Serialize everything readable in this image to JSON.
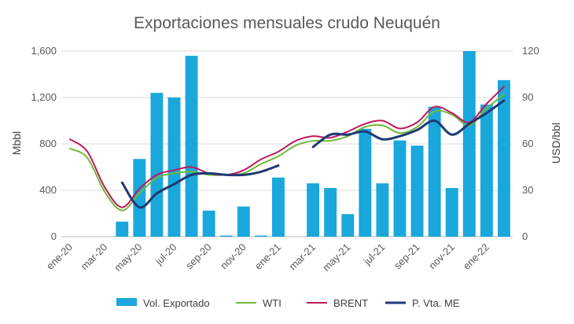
{
  "chart_data": {
    "type": "bar+line",
    "title": "Exportaciones mensuales crudo Neuquén",
    "ylabel_left": "Mbbl",
    "ylabel_right": "USD/bbl",
    "ylim_left": [
      0,
      1600
    ],
    "ylim_right": [
      0,
      120
    ],
    "yticks_left": [
      "0",
      "400",
      "800",
      "1,200",
      "1,600"
    ],
    "yticks_right": [
      "0",
      "30",
      "60",
      "90",
      "120"
    ],
    "grid": true,
    "legend_position": "bottom",
    "categories": [
      "ene-20",
      "feb-20",
      "mar-20",
      "abr-20",
      "may-20",
      "jun-20",
      "jul-20",
      "ago-20",
      "sep-20",
      "oct-20",
      "nov-20",
      "dic-20",
      "ene-21",
      "feb-21",
      "mar-21",
      "abr-21",
      "may-21",
      "jun-21",
      "jul-21",
      "ago-21",
      "sep-21",
      "oct-21",
      "nov-21",
      "dic-21",
      "ene-22",
      "feb-22"
    ],
    "xtick_labels": [
      "ene-20",
      "mar-20",
      "may-20",
      "jul-20",
      "sep-20",
      "nov-20",
      "ene-21",
      "mar-21",
      "may-21",
      "jul-21",
      "sep-21",
      "nov-21",
      "ene-22"
    ],
    "series": [
      {
        "name": "Vol. Exportado",
        "type": "bar",
        "axis": "left",
        "color": "#1aa7dc",
        "values": [
          null,
          null,
          null,
          130,
          670,
          1240,
          1200,
          1560,
          225,
          10,
          260,
          10,
          510,
          null,
          460,
          420,
          195,
          930,
          460,
          830,
          785,
          1120,
          420,
          1600,
          1140,
          1350
        ]
      },
      {
        "name": "WTI",
        "type": "line",
        "axis": "right",
        "color": "#70b83a",
        "values": [
          57,
          51,
          29,
          17,
          28,
          38,
          41,
          42,
          40,
          40,
          41,
          47,
          52,
          59,
          62,
          62,
          65,
          71,
          72,
          67,
          71,
          81,
          79,
          72,
          83,
          92
        ]
      },
      {
        "name": "BRENT",
        "type": "line",
        "axis": "right",
        "color": "#c0185c",
        "values": [
          63,
          55,
          32,
          19,
          31,
          40,
          43,
          45,
          41,
          40,
          43,
          50,
          55,
          62,
          65,
          64,
          68,
          73,
          75,
          70,
          74,
          84,
          80,
          74,
          86,
          97
        ]
      },
      {
        "name": "P. Vta. ME",
        "type": "line",
        "axis": "right",
        "color": "#1f3a73",
        "values": [
          null,
          null,
          null,
          35,
          19,
          28,
          34,
          40,
          41,
          40,
          40,
          42,
          46,
          null,
          58,
          66,
          66,
          68,
          63,
          65,
          69,
          75,
          66,
          73,
          80,
          88
        ]
      }
    ]
  }
}
